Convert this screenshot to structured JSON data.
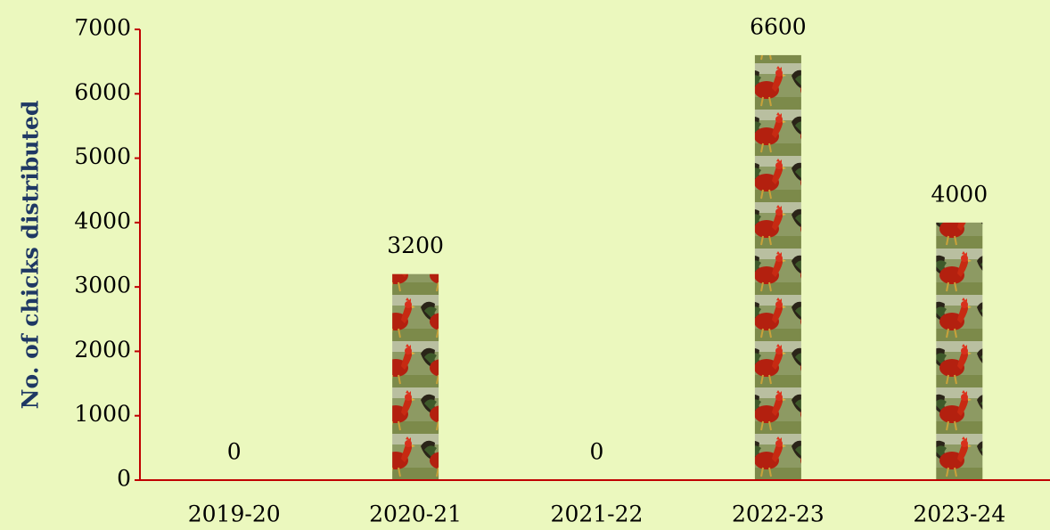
{
  "chart_data": {
    "type": "bar",
    "y_label": "No. of chicks distributed",
    "categories": [
      "2019-20",
      "2020-21",
      "2021-22",
      "2022-23",
      "2023-24"
    ],
    "values": [
      0,
      3200,
      0,
      6600,
      4000
    ],
    "ylim": [
      0,
      7000
    ],
    "yticks": [
      0,
      1000,
      2000,
      3000,
      4000,
      5000,
      6000,
      7000
    ]
  }
}
